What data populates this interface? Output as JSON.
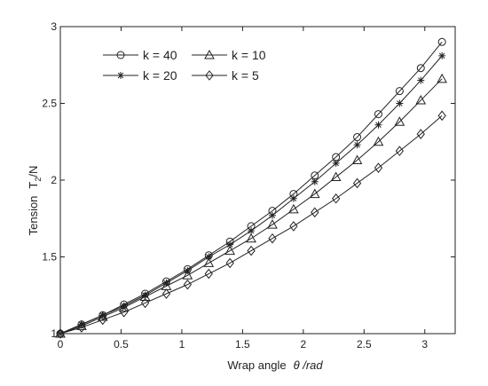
{
  "chart_data": {
    "type": "line",
    "xlabel": "Wrap angle",
    "xlabel_symbol": "θ /rad",
    "ylabel_prefix": "Tension",
    "ylabel_var": "T",
    "ylabel_sub": "2",
    "ylabel_unit": "/N",
    "xlim": [
      0,
      3.25
    ],
    "ylim": [
      1,
      3
    ],
    "xticks": [
      "0",
      "0.5",
      "1",
      "1.5",
      "2",
      "2.5",
      "3"
    ],
    "xtick_values": [
      0,
      0.5,
      1,
      1.5,
      2,
      2.5,
      3
    ],
    "yticks": [
      "1",
      "1.5",
      "2",
      "2.5",
      "3"
    ],
    "ytick_values": [
      1,
      1.5,
      2,
      2.5,
      3
    ],
    "grid": false,
    "legend_position": "top-left",
    "x": [
      0,
      0.1745,
      0.349,
      0.5236,
      0.6981,
      0.8727,
      1.0472,
      1.2217,
      1.3963,
      1.5708,
      1.7453,
      1.9199,
      2.0944,
      2.2689,
      2.4435,
      2.618,
      2.7925,
      2.9671,
      3.1416
    ],
    "series": [
      {
        "name": "k = 40",
        "marker": "circle",
        "values": [
          1.0,
          1.06,
          1.12,
          1.19,
          1.26,
          1.34,
          1.42,
          1.51,
          1.6,
          1.7,
          1.8,
          1.91,
          2.03,
          2.15,
          2.28,
          2.43,
          2.58,
          2.73,
          2.9
        ]
      },
      {
        "name": "k = 20",
        "marker": "star",
        "values": [
          1.0,
          1.06,
          1.12,
          1.18,
          1.25,
          1.33,
          1.41,
          1.5,
          1.58,
          1.67,
          1.77,
          1.88,
          1.99,
          2.11,
          2.23,
          2.36,
          2.5,
          2.65,
          2.81
        ]
      },
      {
        "name": "k = 10",
        "marker": "triangle",
        "values": [
          1.0,
          1.05,
          1.11,
          1.17,
          1.24,
          1.31,
          1.38,
          1.46,
          1.54,
          1.62,
          1.71,
          1.81,
          1.91,
          2.02,
          2.13,
          2.25,
          2.38,
          2.52,
          2.66
        ]
      },
      {
        "name": "k = 5",
        "marker": "diamond",
        "values": [
          1.0,
          1.04,
          1.09,
          1.14,
          1.2,
          1.26,
          1.32,
          1.39,
          1.46,
          1.54,
          1.62,
          1.7,
          1.79,
          1.88,
          1.98,
          2.08,
          2.19,
          2.3,
          2.42
        ]
      }
    ]
  }
}
